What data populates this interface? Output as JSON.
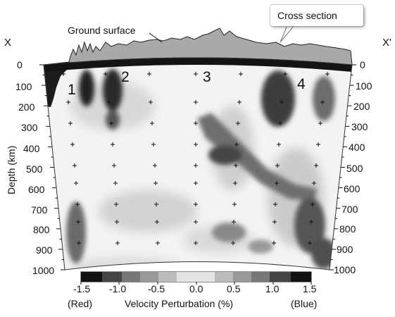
{
  "labels": {
    "x_left": "X",
    "x_right": "X'",
    "ground_surface": "Ground surface",
    "cross_section": "Cross section",
    "depth_axis": "Depth (km)"
  },
  "depth_ticks": [
    "0",
    "100",
    "200",
    "300",
    "400",
    "500",
    "600",
    "700",
    "800",
    "900",
    "1000"
  ],
  "anomalies": [
    "1",
    "2",
    "3",
    "4"
  ],
  "colorbar": {
    "ticks": [
      "-1.5",
      "-1.0",
      "-0.5",
      "0.0",
      "0.5",
      "1.0",
      "1.5"
    ],
    "left_label": "(Red)",
    "title": "Velocity Perturbation (%)",
    "right_label": "(Blue)",
    "range": [
      -1.5,
      1.5
    ]
  }
}
